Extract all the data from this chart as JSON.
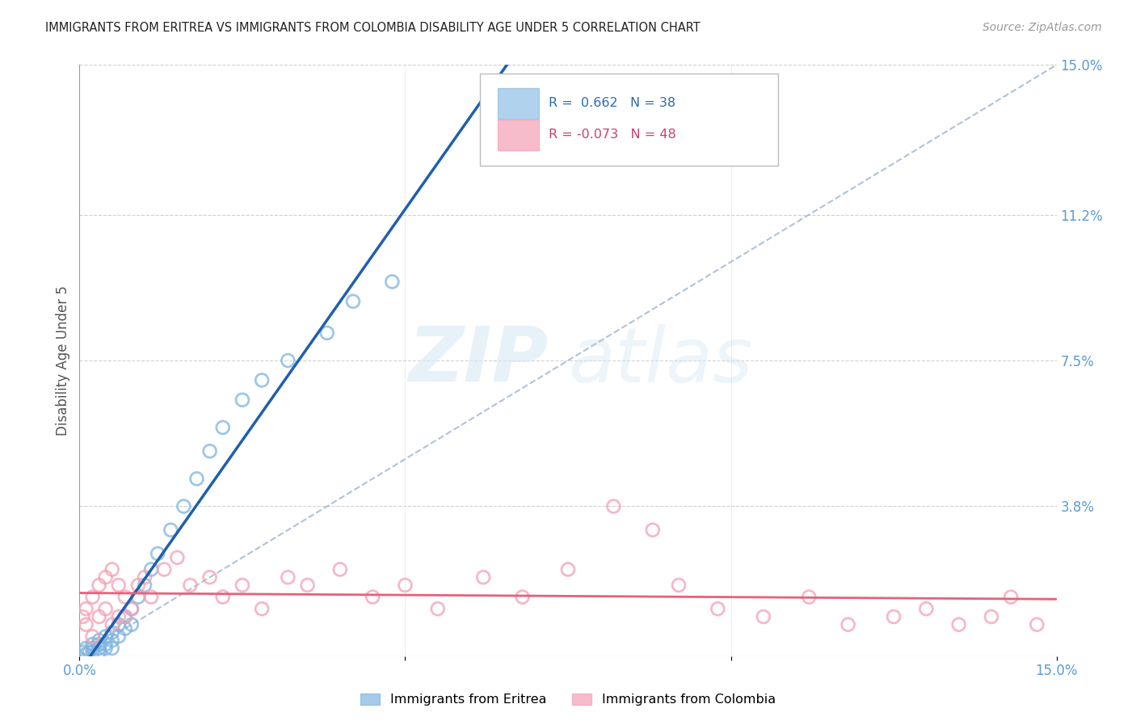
{
  "title": "IMMIGRANTS FROM ERITREA VS IMMIGRANTS FROM COLOMBIA DISABILITY AGE UNDER 5 CORRELATION CHART",
  "source": "Source: ZipAtlas.com",
  "ylabel": "Disability Age Under 5",
  "xlim": [
    0,
    0.15
  ],
  "ylim": [
    0,
    0.15
  ],
  "ytick_values": [
    0.038,
    0.075,
    0.112,
    0.15
  ],
  "ytick_labels": [
    "3.8%",
    "7.5%",
    "11.2%",
    "15.0%"
  ],
  "xtick_values": [
    0.0,
    0.15
  ],
  "xtick_labels": [
    "0.0%",
    "15.0%"
  ],
  "legend1_label": "Immigrants from Eritrea",
  "legend2_label": "Immigrants from Colombia",
  "R_eritrea": 0.662,
  "N_eritrea": 38,
  "R_colombia": -0.073,
  "N_colombia": 48,
  "eritrea_color": "#7EB5E0",
  "colombia_color": "#F4A0B5",
  "eritrea_line_color": "#1F5FAD",
  "colombia_line_color": "#E8607A",
  "ref_line_color": "#AABBD4",
  "background_color": "#FFFFFF",
  "grid_color": "#CCCCCC",
  "watermark_zip": "ZIP",
  "watermark_atlas": "atlas",
  "eritrea_x": [
    0.0005,
    0.001,
    0.001,
    0.0015,
    0.002,
    0.002,
    0.002,
    0.003,
    0.003,
    0.003,
    0.003,
    0.004,
    0.004,
    0.004,
    0.005,
    0.005,
    0.005,
    0.006,
    0.006,
    0.007,
    0.007,
    0.008,
    0.008,
    0.009,
    0.01,
    0.011,
    0.012,
    0.014,
    0.016,
    0.018,
    0.02,
    0.022,
    0.025,
    0.028,
    0.032,
    0.038,
    0.042,
    0.048
  ],
  "eritrea_y": [
    0.001,
    0.0005,
    0.002,
    0.001,
    0.003,
    0.001,
    0.002,
    0.004,
    0.003,
    0.002,
    0.001,
    0.005,
    0.003,
    0.002,
    0.006,
    0.004,
    0.002,
    0.008,
    0.005,
    0.01,
    0.007,
    0.012,
    0.008,
    0.015,
    0.018,
    0.022,
    0.026,
    0.032,
    0.038,
    0.045,
    0.052,
    0.058,
    0.065,
    0.07,
    0.075,
    0.082,
    0.09,
    0.095
  ],
  "colombia_x": [
    0.0005,
    0.001,
    0.001,
    0.002,
    0.002,
    0.003,
    0.003,
    0.004,
    0.004,
    0.005,
    0.005,
    0.006,
    0.006,
    0.007,
    0.007,
    0.008,
    0.009,
    0.01,
    0.011,
    0.013,
    0.015,
    0.017,
    0.02,
    0.022,
    0.025,
    0.028,
    0.032,
    0.035,
    0.04,
    0.045,
    0.05,
    0.055,
    0.062,
    0.068,
    0.075,
    0.082,
    0.088,
    0.092,
    0.098,
    0.105,
    0.112,
    0.118,
    0.125,
    0.13,
    0.135,
    0.14,
    0.143,
    0.147
  ],
  "colombia_y": [
    0.01,
    0.012,
    0.008,
    0.015,
    0.005,
    0.018,
    0.01,
    0.02,
    0.012,
    0.022,
    0.008,
    0.018,
    0.01,
    0.015,
    0.01,
    0.012,
    0.018,
    0.02,
    0.015,
    0.022,
    0.025,
    0.018,
    0.02,
    0.015,
    0.018,
    0.012,
    0.02,
    0.018,
    0.022,
    0.015,
    0.018,
    0.012,
    0.02,
    0.015,
    0.022,
    0.038,
    0.032,
    0.018,
    0.012,
    0.01,
    0.015,
    0.008,
    0.01,
    0.012,
    0.008,
    0.01,
    0.015,
    0.008
  ]
}
